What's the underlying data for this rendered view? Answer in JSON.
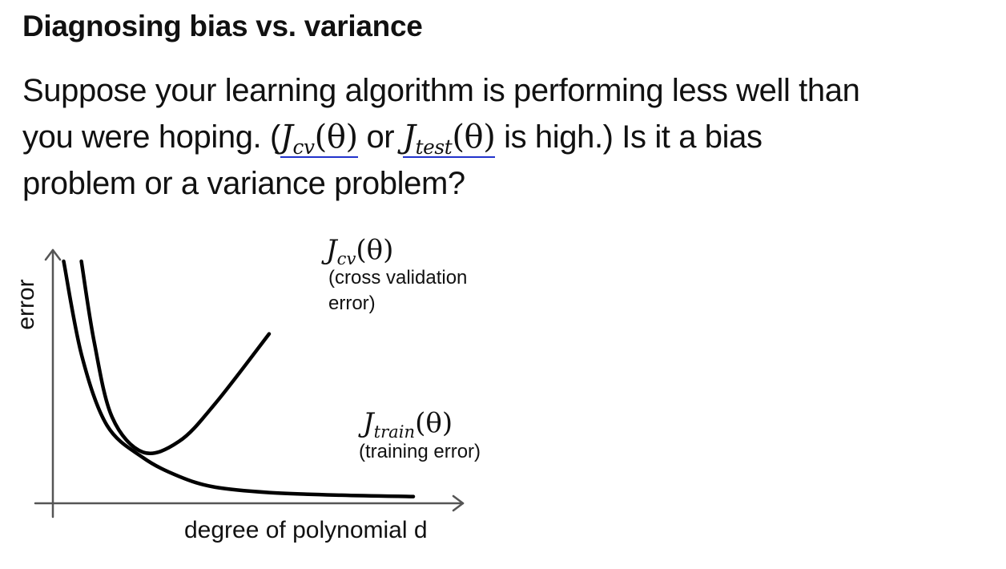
{
  "slide": {
    "title": "Diagnosing bias vs. variance",
    "question": {
      "line1": "Suppose your learning algorithm is performing less well than",
      "line2_prefix": "you were hoping. (",
      "jcv": {
        "base": "J",
        "sub": "cv",
        "arg": "(θ)"
      },
      "or_text": " or ",
      "jtest": {
        "base": "J",
        "sub": "test",
        "arg": "(θ)"
      },
      "line2_suffix": " is high.)  Is it a bias",
      "line3": "problem or a variance problem?"
    },
    "annotation_color": "#2233cc"
  },
  "chart_data": {
    "type": "line",
    "xlabel": "degree of polynomial d",
    "ylabel": "error",
    "x": [
      0.3,
      0.8,
      1.5,
      2.5,
      3.5,
      4.5,
      6.0,
      8.0,
      10.0
    ],
    "series": [
      {
        "name": "J_cv(θ)",
        "label_math": {
          "base": "J",
          "sub": "cv",
          "arg": "(θ)"
        },
        "label_lines": [
          "(cross validation",
          "error)"
        ],
        "values": [
          9.0,
          6.0,
          3.2,
          1.9,
          2.3,
          3.7,
          6.3,
          null,
          null
        ]
      },
      {
        "name": "J_train(θ)",
        "label_math": {
          "base": "J",
          "sub": "train",
          "arg": "(θ)"
        },
        "label_lines": [
          "(training error)"
        ],
        "values": [
          9.0,
          5.5,
          2.9,
          1.7,
          1.0,
          0.6,
          0.4,
          0.3,
          0.25
        ]
      }
    ],
    "xlim": [
      0,
      11
    ],
    "ylim": [
      0,
      9
    ],
    "grid": false,
    "legend": "none"
  }
}
